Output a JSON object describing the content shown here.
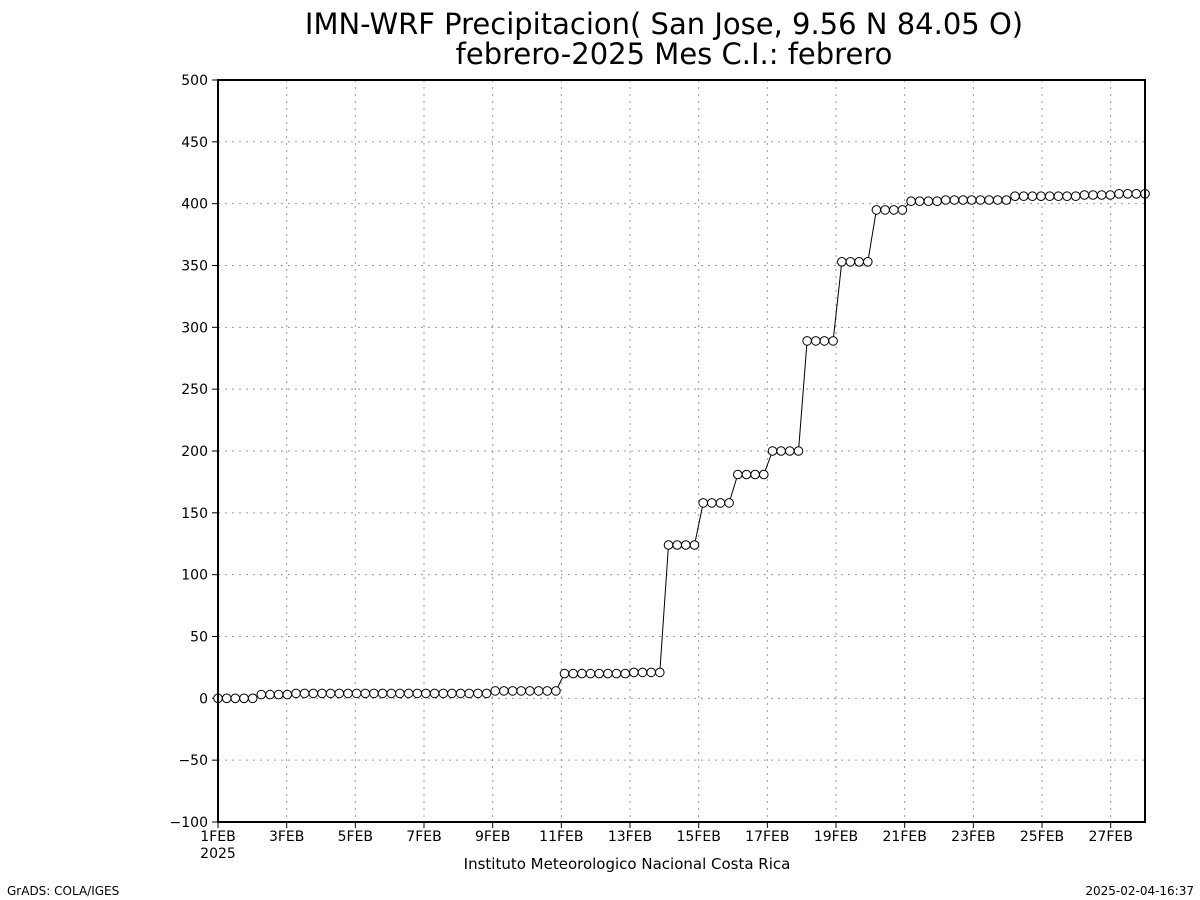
{
  "chart_data": {
    "type": "line",
    "title": "IMN-WRF  Precipitacion( San Jose, 9.56  N 84.05  O)",
    "subtitle": "febrero-2025 Mes C.I.: febrero",
    "xlabel": "",
    "ylabel": "",
    "ylim": [
      -100,
      500
    ],
    "yticks": [
      -100,
      -50,
      0,
      50,
      100,
      150,
      200,
      250,
      300,
      350,
      400,
      450,
      500
    ],
    "xlim_day": [
      1,
      28.0
    ],
    "xticks": [
      {
        "day": 1,
        "label": "1FEB",
        "sublabel": "2025"
      },
      {
        "day": 3,
        "label": "3FEB"
      },
      {
        "day": 5,
        "label": "5FEB"
      },
      {
        "day": 7,
        "label": "7FEB"
      },
      {
        "day": 9,
        "label": "9FEB"
      },
      {
        "day": 11,
        "label": "11FEB"
      },
      {
        "day": 13,
        "label": "13FEB"
      },
      {
        "day": 15,
        "label": "15FEB"
      },
      {
        "day": 17,
        "label": "17FEB"
      },
      {
        "day": 19,
        "label": "19FEB"
      },
      {
        "day": 21,
        "label": "21FEB"
      },
      {
        "day": 23,
        "label": "23FEB"
      },
      {
        "day": 25,
        "label": "25FEB"
      },
      {
        "day": 27,
        "label": "27FEB"
      }
    ],
    "grid": true,
    "marker": "open-circle",
    "line_color": "#000000",
    "series": [
      {
        "values": [
          0,
          0,
          0,
          0,
          0,
          3,
          3,
          3,
          3,
          4,
          4,
          4,
          4,
          4,
          4,
          4,
          4,
          4,
          4,
          4,
          4,
          4,
          4,
          4,
          4,
          4,
          4,
          4,
          4,
          4,
          4,
          4,
          6,
          6,
          6,
          6,
          6,
          6,
          6,
          6,
          20,
          20,
          20,
          20,
          20,
          20,
          20,
          20,
          21,
          21,
          21,
          21,
          124,
          124,
          124,
          124,
          158,
          158,
          158,
          158,
          181,
          181,
          181,
          181,
          200,
          200,
          200,
          200,
          289,
          289,
          289,
          289,
          353,
          353,
          353,
          353,
          395,
          395,
          395,
          395,
          402,
          402,
          402,
          402,
          403,
          403,
          403,
          403,
          403,
          403,
          403,
          403,
          406,
          406,
          406,
          406,
          406,
          406,
          406,
          406,
          407,
          407,
          407,
          407,
          408,
          408,
          408,
          408
        ]
      }
    ]
  },
  "credit": "Instituto Meteorologico Nacional Costa Rica",
  "footer_left": "GrADS: COLA/IGES",
  "footer_right": "2025-02-04-16:37"
}
